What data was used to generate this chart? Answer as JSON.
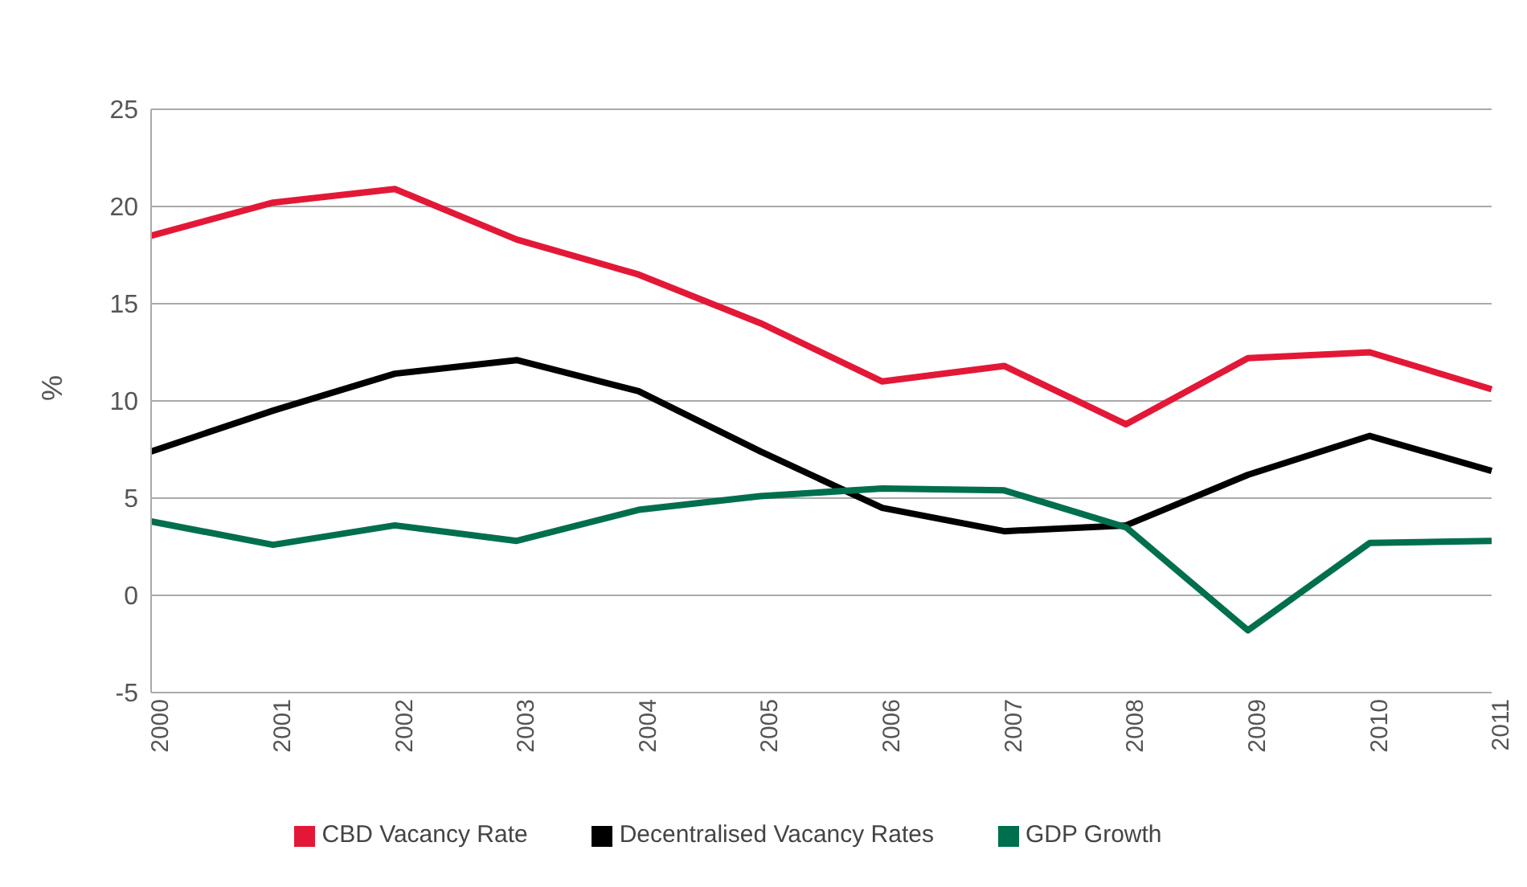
{
  "chart_data": {
    "type": "line",
    "ylabel": "%",
    "categories": [
      "2000",
      "2001",
      "2002",
      "2003",
      "2004",
      "2005",
      "2006",
      "2007",
      "2008",
      "2009",
      "2010",
      "2011"
    ],
    "series": [
      {
        "name": "CBD Vacancy Rate",
        "color": "#e31837",
        "values": [
          18.5,
          20.2,
          20.9,
          18.3,
          16.5,
          14.0,
          11.0,
          11.8,
          8.8,
          12.2,
          12.5,
          10.6
        ]
      },
      {
        "name": "Decentralised Vacancy Rates",
        "color": "#000000",
        "values": [
          7.4,
          9.5,
          11.4,
          12.1,
          10.5,
          7.4,
          4.5,
          3.3,
          3.6,
          6.2,
          8.2,
          6.4
        ]
      },
      {
        "name": "GDP Growth",
        "color": "#006f4e",
        "values": [
          3.8,
          2.6,
          3.6,
          2.8,
          4.4,
          5.1,
          5.5,
          5.4,
          3.5,
          -1.8,
          2.7,
          2.8
        ]
      }
    ],
    "ylim": [
      -5,
      25
    ],
    "yticks": [
      -5,
      0,
      5,
      10,
      15,
      20,
      25
    ],
    "grid": "y",
    "legend": "bottom",
    "marker": "none",
    "line_style": "solid"
  }
}
